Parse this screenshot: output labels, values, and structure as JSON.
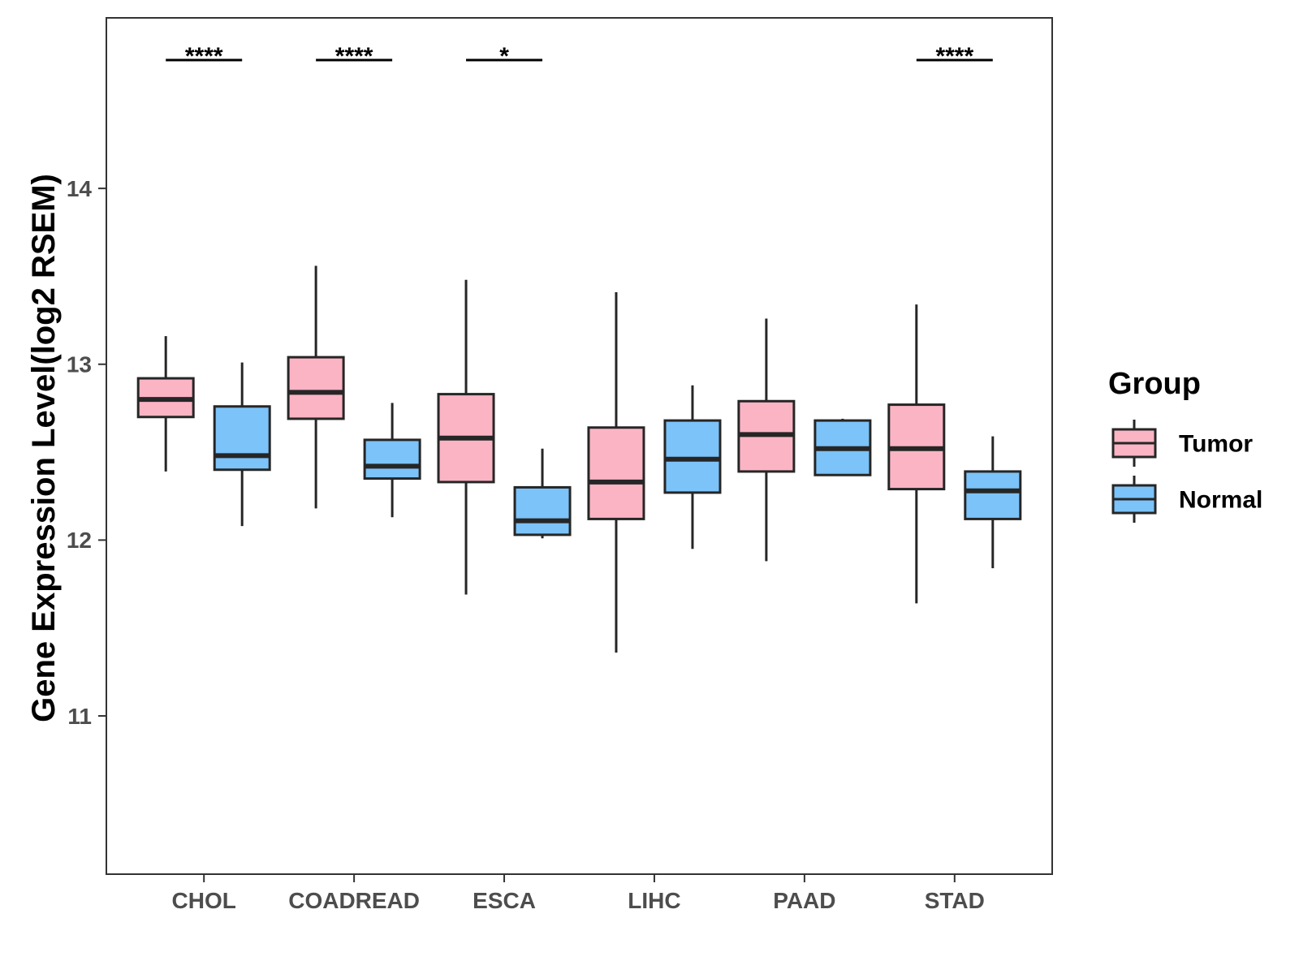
{
  "chart_data": {
    "type": "boxplot",
    "title": "",
    "xlabel": "",
    "ylabel": "Gene Expression Level(log2 RSEM)",
    "ylim": [
      10.1,
      14.97
    ],
    "yticks": [
      11,
      12,
      13,
      14
    ],
    "ytick_labels": [
      "11",
      "12",
      "13",
      "14"
    ],
    "categories": [
      "CHOL",
      "COADREAD",
      "ESCA",
      "LIHC",
      "PAAD",
      "STAD"
    ],
    "legend": {
      "title": "Group",
      "position": "right",
      "entries": [
        {
          "name": "Tumor",
          "color": "#fbb4c4"
        },
        {
          "name": "Normal",
          "color": "#7bc3f9"
        }
      ]
    },
    "series": [
      {
        "name": "Tumor",
        "color": "#fbb4c4",
        "boxes": [
          {
            "category": "CHOL",
            "min": 12.39,
            "q1": 12.7,
            "median": 12.8,
            "q3": 12.92,
            "max": 13.16
          },
          {
            "category": "COADREAD",
            "min": 12.18,
            "q1": 12.69,
            "median": 12.84,
            "q3": 13.04,
            "max": 13.56
          },
          {
            "category": "ESCA",
            "min": 11.69,
            "q1": 12.33,
            "median": 12.58,
            "q3": 12.83,
            "max": 13.48
          },
          {
            "category": "LIHC",
            "min": 11.36,
            "q1": 12.12,
            "median": 12.33,
            "q3": 12.64,
            "max": 13.41
          },
          {
            "category": "PAAD",
            "min": 11.88,
            "q1": 12.39,
            "median": 12.6,
            "q3": 12.79,
            "max": 13.26
          },
          {
            "category": "STAD",
            "min": 11.64,
            "q1": 12.29,
            "median": 12.52,
            "q3": 12.77,
            "max": 13.34
          }
        ]
      },
      {
        "name": "Normal",
        "color": "#7bc3f9",
        "boxes": [
          {
            "category": "CHOL",
            "min": 12.08,
            "q1": 12.4,
            "median": 12.48,
            "q3": 12.76,
            "max": 13.01
          },
          {
            "category": "COADREAD",
            "min": 12.13,
            "q1": 12.35,
            "median": 12.42,
            "q3": 12.57,
            "max": 12.78
          },
          {
            "category": "ESCA",
            "min": 12.01,
            "q1": 12.03,
            "median": 12.11,
            "q3": 12.3,
            "max": 12.52
          },
          {
            "category": "LIHC",
            "min": 11.95,
            "q1": 12.27,
            "median": 12.46,
            "q3": 12.68,
            "max": 12.88
          },
          {
            "category": "PAAD",
            "min": 12.37,
            "q1": 12.37,
            "median": 12.52,
            "q3": 12.68,
            "max": 12.69
          },
          {
            "category": "STAD",
            "min": 11.84,
            "q1": 12.12,
            "median": 12.28,
            "q3": 12.39,
            "max": 12.59
          }
        ]
      }
    ],
    "annotations": [
      {
        "category": "CHOL",
        "label": "****"
      },
      {
        "category": "COADREAD",
        "label": "****"
      },
      {
        "category": "ESCA",
        "label": "*"
      },
      {
        "category": "STAD",
        "label": "****"
      }
    ],
    "annotation_y": 14.73
  }
}
